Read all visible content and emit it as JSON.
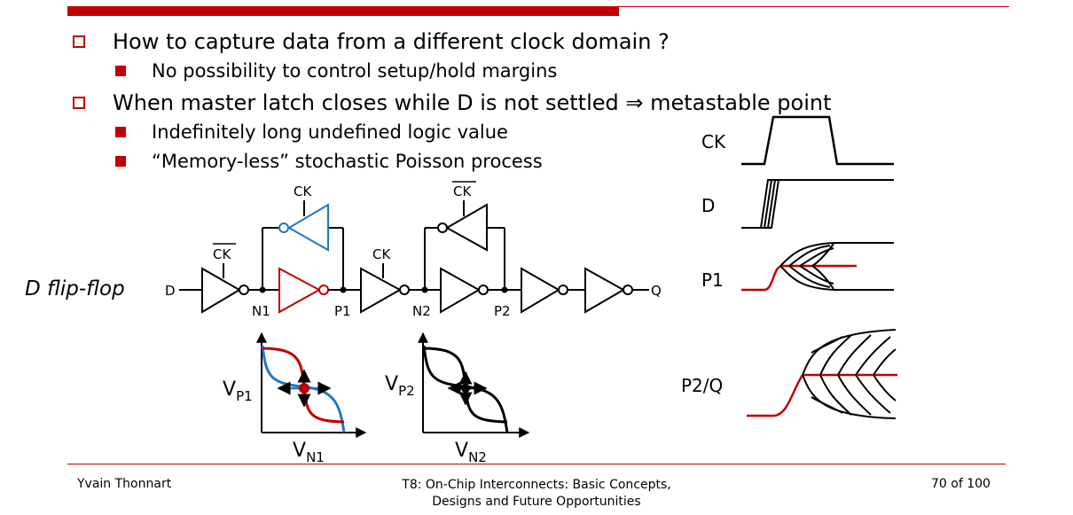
{
  "bullets": {
    "b1": "How to capture data from a different clock domain ?",
    "b1a": "No possibility to control setup/hold margins",
    "b2": "When master latch closes while D is not settled ⇒ metastable point",
    "b2a": "Indefinitely long undefined logic value",
    "b2b": "“Memory-less” stochastic Poisson process"
  },
  "diagram": {
    "title": "D flip-flop",
    "ck": "CK",
    "ckbar": "CK",
    "d": "D",
    "q": "Q",
    "n1": "N1",
    "p1": "P1",
    "n2": "N2",
    "p2": "P2",
    "vp1": "V",
    "vp1_sub": "P1",
    "vp2": "V",
    "vp2_sub": "P2",
    "vn1": "V",
    "vn1_sub": "N1",
    "vn2": "V",
    "vn2_sub": "N2"
  },
  "waveforms": {
    "ck": "CK",
    "d": "D",
    "p1": "P1",
    "p2q": "P2/Q"
  },
  "footer": {
    "author": "Yvain Thonnart",
    "title_line1": "T8: On-Chip Interconnects: Basic Concepts,",
    "title_line2": "Designs and Future Opportunities",
    "page": "70 of 100"
  },
  "colors": {
    "accent": "#c00000",
    "blue": "#1f77c4",
    "red": "#c00000"
  }
}
